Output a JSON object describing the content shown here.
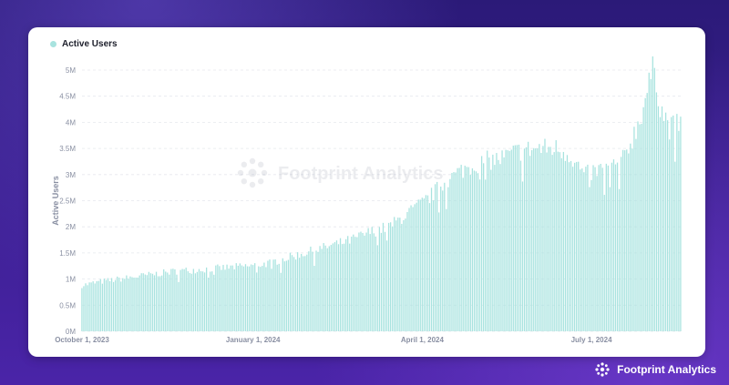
{
  "chart_data": {
    "type": "bar",
    "legend": "Active Users",
    "ylabel": "Active Users",
    "xlabel": "",
    "ylim": [
      0,
      5000000
    ],
    "yticks": [
      "0M",
      "0.5M",
      "1M",
      "1.5M",
      "2M",
      "2.5M",
      "3M",
      "3.5M",
      "4M",
      "4.5M",
      "5M"
    ],
    "xticks": [
      "October 1, 2023",
      "January 1, 2024",
      "April 1, 2024",
      "July 1, 2024"
    ],
    "x_start": "2023-10-01",
    "x_end": "2024-08-18",
    "bar_color": "#a8e3df",
    "grid": true,
    "knots": [
      [
        0,
        0.88
      ],
      [
        10,
        0.95
      ],
      [
        30,
        1.05
      ],
      [
        50,
        1.15
      ],
      [
        70,
        1.2
      ],
      [
        90,
        1.25
      ],
      [
        100,
        1.3
      ],
      [
        115,
        1.45
      ],
      [
        130,
        1.6
      ],
      [
        145,
        1.75
      ],
      [
        155,
        1.9
      ],
      [
        165,
        2.0
      ],
      [
        175,
        2.25
      ],
      [
        185,
        2.5
      ],
      [
        195,
        2.85
      ],
      [
        205,
        3.1
      ],
      [
        215,
        3.25
      ],
      [
        225,
        3.3
      ],
      [
        235,
        3.45
      ],
      [
        245,
        3.5
      ],
      [
        255,
        3.5
      ],
      [
        262,
        3.4
      ],
      [
        270,
        3.0
      ],
      [
        280,
        3.1
      ],
      [
        290,
        3.2
      ],
      [
        296,
        3.7
      ],
      [
        300,
        4.05
      ],
      [
        304,
        4.6
      ],
      [
        308,
        5.1
      ],
      [
        311,
        4.3
      ],
      [
        316,
        3.9
      ],
      [
        322,
        3.95
      ],
      [
        328,
        4.05
      ],
      [
        334,
        4.1
      ],
      [
        338,
        4.3
      ],
      [
        340,
        4.4
      ]
    ]
  },
  "watermark": "Footprint Analytics",
  "brand": {
    "name": "Footprint Analytics"
  },
  "colors": {
    "accent": "#a8e3df",
    "grid": "#e6e8ee",
    "axis_text": "#8a90a3"
  }
}
